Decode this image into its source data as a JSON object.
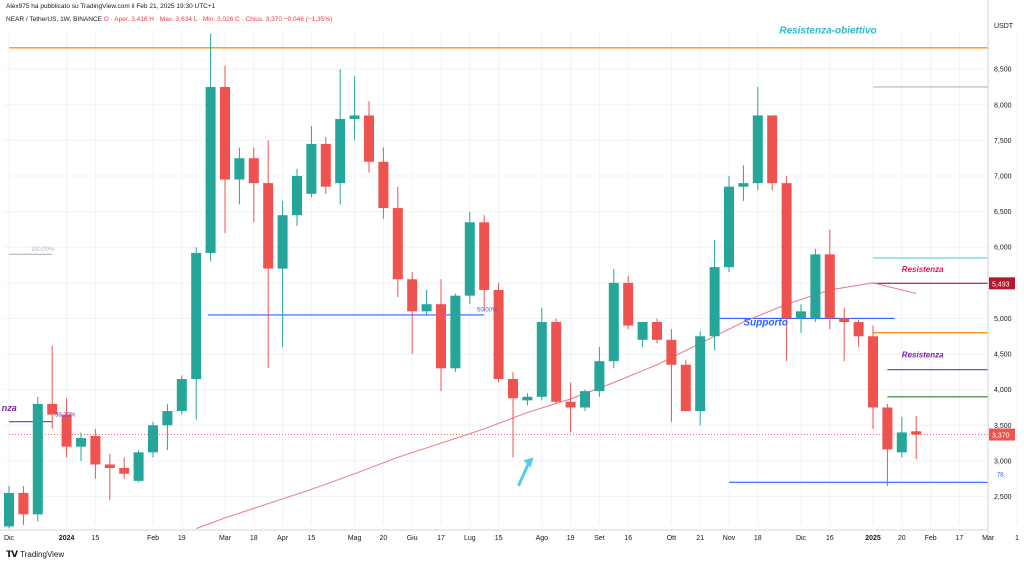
{
  "header": {
    "publisher": "Alex975 ha pubblicato su TradingView.com il Feb 21, 2025 19:30 UTC+1",
    "symbol": "NEAR / TetherUS, 1W, BINANCE",
    "ohlc": "O · Aper. 3,416  H · Max. 3,634  L · Min. 3,026  C · Chius. 3,370  −0,046 (−1,35%)"
  },
  "footer": {
    "brand": "TradingView"
  },
  "currency_label": "USDT",
  "colors": {
    "up": "#26a69a",
    "down": "#ef5350",
    "ma": "#e8848c",
    "orange": "#f7931a",
    "red_level": "#b2192c",
    "purple": "#673ab7",
    "green": "#2e7d32",
    "blue": "#2962ff",
    "teal_text": "#2bbbcf",
    "pink_text": "#d81b60",
    "purple_text": "#7b1fa2",
    "grid": "#f0f3fa"
  },
  "chart_data": {
    "type": "candlestick",
    "y_axis": {
      "min": 2.1,
      "max": 9.05,
      "scale": "linear",
      "tick_values": [
        2.5,
        3.0,
        3.5,
        4.0,
        4.5,
        5.0,
        5.5,
        6.0,
        6.5,
        7.0,
        7.5,
        8.0,
        8.5
      ],
      "tick_labels": [
        "2,500",
        "3,000",
        "3,500",
        "4,000",
        "4,500",
        "5,000",
        "5,500",
        "6,000",
        "6,500",
        "7,000",
        "7,500",
        "8,000",
        "8,500"
      ]
    },
    "x_axis": {
      "tick_labels": [
        "Dic",
        "2024",
        "15",
        "Feb",
        "19",
        "Mar",
        "18",
        "Apr",
        "15",
        "Mag",
        "20",
        "Giu",
        "17",
        "Lug",
        "15",
        "Ago",
        "19",
        "Set",
        "16",
        "Ott",
        "21",
        "Nov",
        "18",
        "Dic",
        "16",
        "2025",
        "20",
        "Feb",
        "17",
        "Mar",
        "1"
      ],
      "tick_candle_index": [
        0,
        4,
        6,
        10,
        12,
        15,
        17,
        19,
        21,
        24,
        26,
        28,
        30,
        32,
        34,
        37,
        39,
        41,
        43,
        46,
        48,
        50,
        52,
        55,
        57,
        60,
        62,
        64,
        66,
        68,
        70
      ]
    },
    "candles": [
      {
        "o": 2.08,
        "h": 2.65,
        "l": 2.05,
        "c": 2.55
      },
      {
        "o": 2.55,
        "h": 2.65,
        "l": 2.1,
        "c": 2.25
      },
      {
        "o": 2.25,
        "h": 3.9,
        "l": 2.15,
        "c": 3.8
      },
      {
        "o": 3.8,
        "h": 4.62,
        "l": 3.45,
        "c": 3.65
      },
      {
        "o": 3.65,
        "h": 3.88,
        "l": 3.05,
        "c": 3.2
      },
      {
        "o": 3.2,
        "h": 3.4,
        "l": 3.0,
        "c": 3.32
      },
      {
        "o": 3.35,
        "h": 3.45,
        "l": 2.75,
        "c": 2.95
      },
      {
        "o": 2.95,
        "h": 3.1,
        "l": 2.45,
        "c": 2.9
      },
      {
        "o": 2.9,
        "h": 3.05,
        "l": 2.75,
        "c": 2.82
      },
      {
        "o": 2.72,
        "h": 3.15,
        "l": 2.7,
        "c": 3.12
      },
      {
        "o": 3.12,
        "h": 3.55,
        "l": 3.05,
        "c": 3.5
      },
      {
        "o": 3.5,
        "h": 3.8,
        "l": 3.15,
        "c": 3.7
      },
      {
        "o": 3.7,
        "h": 4.2,
        "l": 3.65,
        "c": 4.15
      },
      {
        "o": 4.15,
        "h": 6.0,
        "l": 3.58,
        "c": 5.92
      },
      {
        "o": 5.92,
        "h": 9.0,
        "l": 5.8,
        "c": 8.25
      },
      {
        "o": 8.25,
        "h": 8.55,
        "l": 6.2,
        "c": 6.95
      },
      {
        "o": 6.95,
        "h": 7.4,
        "l": 6.6,
        "c": 7.25
      },
      {
        "o": 7.25,
        "h": 7.4,
        "l": 6.35,
        "c": 6.9
      },
      {
        "o": 6.9,
        "h": 7.5,
        "l": 4.3,
        "c": 5.7
      },
      {
        "o": 5.7,
        "h": 6.65,
        "l": 4.6,
        "c": 6.45
      },
      {
        "o": 6.45,
        "h": 7.1,
        "l": 6.3,
        "c": 7.0
      },
      {
        "o": 6.75,
        "h": 7.7,
        "l": 6.7,
        "c": 7.45
      },
      {
        "o": 7.45,
        "h": 7.55,
        "l": 6.75,
        "c": 6.85
      },
      {
        "o": 6.9,
        "h": 8.5,
        "l": 6.6,
        "c": 7.8
      },
      {
        "o": 7.8,
        "h": 8.4,
        "l": 7.5,
        "c": 7.85
      },
      {
        "o": 7.85,
        "h": 8.05,
        "l": 7.05,
        "c": 7.2
      },
      {
        "o": 7.2,
        "h": 7.4,
        "l": 6.4,
        "c": 6.55
      },
      {
        "o": 6.55,
        "h": 6.85,
        "l": 5.3,
        "c": 5.55
      },
      {
        "o": 5.55,
        "h": 5.65,
        "l": 4.5,
        "c": 5.1
      },
      {
        "o": 5.1,
        "h": 5.4,
        "l": 5.05,
        "c": 5.2
      },
      {
        "o": 5.2,
        "h": 5.55,
        "l": 3.98,
        "c": 4.3
      },
      {
        "o": 4.3,
        "h": 5.35,
        "l": 4.25,
        "c": 5.32
      },
      {
        "o": 5.32,
        "h": 6.5,
        "l": 5.2,
        "c": 6.35
      },
      {
        "o": 6.35,
        "h": 6.45,
        "l": 5.1,
        "c": 5.4
      },
      {
        "o": 5.4,
        "h": 5.5,
        "l": 4.1,
        "c": 4.15
      },
      {
        "o": 4.15,
        "h": 4.25,
        "l": 3.05,
        "c": 3.88
      },
      {
        "o": 3.85,
        "h": 3.95,
        "l": 3.78,
        "c": 3.9
      },
      {
        "o": 3.9,
        "h": 5.15,
        "l": 3.85,
        "c": 4.95
      },
      {
        "o": 4.95,
        "h": 5.0,
        "l": 3.8,
        "c": 3.83
      },
      {
        "o": 3.83,
        "h": 4.1,
        "l": 3.4,
        "c": 3.75
      },
      {
        "o": 3.75,
        "h": 4.0,
        "l": 3.7,
        "c": 3.98
      },
      {
        "o": 3.98,
        "h": 4.6,
        "l": 3.9,
        "c": 4.4
      },
      {
        "o": 4.4,
        "h": 5.7,
        "l": 4.3,
        "c": 5.5
      },
      {
        "o": 5.5,
        "h": 5.6,
        "l": 4.85,
        "c": 4.9
      },
      {
        "o": 4.7,
        "h": 4.95,
        "l": 4.6,
        "c": 4.95
      },
      {
        "o": 4.95,
        "h": 5.0,
        "l": 4.65,
        "c": 4.7
      },
      {
        "o": 4.7,
        "h": 4.85,
        "l": 3.55,
        "c": 4.35
      },
      {
        "o": 4.35,
        "h": 4.42,
        "l": 3.7,
        "c": 3.7
      },
      {
        "o": 3.7,
        "h": 4.82,
        "l": 3.5,
        "c": 4.75
      },
      {
        "o": 4.75,
        "h": 6.1,
        "l": 4.55,
        "c": 5.72
      },
      {
        "o": 5.72,
        "h": 7.0,
        "l": 5.65,
        "c": 6.85
      },
      {
        "o": 6.85,
        "h": 7.15,
        "l": 6.65,
        "c": 6.9
      },
      {
        "o": 6.9,
        "h": 8.25,
        "l": 6.8,
        "c": 7.85
      },
      {
        "o": 7.85,
        "h": 7.85,
        "l": 6.8,
        "c": 6.9
      },
      {
        "o": 6.9,
        "h": 7.0,
        "l": 4.4,
        "c": 5.0
      },
      {
        "o": 5.0,
        "h": 5.2,
        "l": 4.8,
        "c": 5.1
      },
      {
        "o": 5.0,
        "h": 5.98,
        "l": 4.95,
        "c": 5.9
      },
      {
        "o": 5.9,
        "h": 6.25,
        "l": 4.85,
        "c": 5.0
      },
      {
        "o": 5.0,
        "h": 5.15,
        "l": 4.4,
        "c": 4.95
      },
      {
        "o": 4.95,
        "h": 4.98,
        "l": 4.6,
        "c": 4.75
      },
      {
        "o": 4.75,
        "h": 4.9,
        "l": 3.45,
        "c": 3.75
      },
      {
        "o": 3.75,
        "h": 3.8,
        "l": 2.65,
        "c": 3.16
      },
      {
        "o": 3.12,
        "h": 3.62,
        "l": 3.05,
        "c": 3.4
      },
      {
        "o": 3.416,
        "h": 3.634,
        "l": 3.026,
        "c": 3.37
      }
    ],
    "moving_average": [
      [
        13,
        2.05
      ],
      [
        15,
        2.2
      ],
      [
        18,
        2.4
      ],
      [
        21,
        2.6
      ],
      [
        24,
        2.82
      ],
      [
        27,
        3.05
      ],
      [
        30,
        3.25
      ],
      [
        33,
        3.45
      ],
      [
        36,
        3.68
      ],
      [
        39,
        3.87
      ],
      [
        42,
        4.1
      ],
      [
        45,
        4.35
      ],
      [
        48,
        4.65
      ],
      [
        51,
        4.95
      ],
      [
        54,
        5.2
      ],
      [
        57,
        5.4
      ],
      [
        60,
        5.5
      ],
      [
        63,
        5.35
      ]
    ],
    "horizontal_levels": [
      {
        "y": 8.8,
        "from": 0,
        "to": 70,
        "color": "orange"
      },
      {
        "y": 8.25,
        "from": 60,
        "to": 70,
        "color": "grey"
      },
      {
        "y": 5.85,
        "from": 60,
        "to": 70,
        "color": "teal"
      },
      {
        "y": 5.493,
        "from": 60,
        "to": 70,
        "color": "red_level"
      },
      {
        "y": 5.0,
        "from": 49,
        "to": 61.5,
        "color": "blue"
      },
      {
        "y": 4.8,
        "from": 60,
        "to": 70,
        "color": "orange"
      },
      {
        "y": 4.28,
        "from": 61,
        "to": 70,
        "color": "purple"
      },
      {
        "y": 3.9,
        "from": 61,
        "to": 70,
        "color": "green"
      },
      {
        "y": 5.05,
        "from": 13.8,
        "to": 33,
        "color": "blue"
      },
      {
        "y": 3.55,
        "from": 0,
        "to": 3,
        "color": "purple"
      },
      {
        "y": 2.7,
        "from": 50,
        "to": 70,
        "color": "blue"
      },
      {
        "y": 3.37,
        "from": 0,
        "to": 70,
        "color": "dotted"
      },
      {
        "y": 5.9,
        "from": 0,
        "to": 3,
        "color": "grey"
      }
    ],
    "annotations": [
      {
        "text": "Resistenza-obiettivo",
        "y": 9.0,
        "candle": 53.5,
        "color": "teal_text",
        "size": 10
      },
      {
        "text": "Resistenza",
        "y": 5.65,
        "candle": 62,
        "color": "pink_text",
        "size": 8
      },
      {
        "text": "Resistenza",
        "y": 4.45,
        "candle": 62,
        "color": "purple_text",
        "size": 8
      },
      {
        "text": "Supporto",
        "y": 4.9,
        "candle": 51,
        "color": "blue",
        "size": 10
      },
      {
        "text": "nza",
        "y": 3.7,
        "candle": -0.5,
        "color": "purple_text",
        "size": 9
      }
    ],
    "fib_labels": [
      {
        "text": "100,00%",
        "y": 5.95,
        "candle": 1.5,
        "color": "grey"
      },
      {
        "text": "50,00%",
        "y": 5.1,
        "candle": 32.5,
        "color": "blue"
      },
      {
        "text": "38,20%",
        "y": 3.62,
        "candle": 3.2,
        "color": "purple"
      },
      {
        "text": "78,",
        "y": 2.78,
        "candle": 68.6,
        "color": "blue"
      }
    ],
    "price_tags": [
      {
        "text": "5,493",
        "y": 5.493,
        "color": "red_level"
      },
      {
        "text": "3,370",
        "y": 3.37,
        "color": "down"
      }
    ],
    "arrow": {
      "candle": 35.8,
      "y_from": 2.65,
      "y_to": 3.05
    }
  }
}
